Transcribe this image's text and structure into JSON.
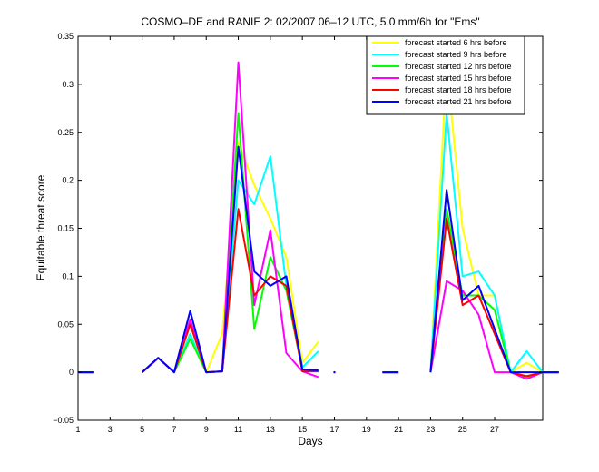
{
  "chart_data": {
    "type": "line",
    "title": "COSMO–DE and RANIE 2: 02/2007 06–12 UTC, 5.0 mm/6h for \"Ems\"",
    "xlabel": "Days",
    "ylabel": "Equitable threat score",
    "xlim": [
      1,
      30
    ],
    "ylim": [
      -0.05,
      0.35
    ],
    "xticks": [
      1,
      3,
      5,
      7,
      9,
      11,
      13,
      15,
      17,
      19,
      21,
      23,
      25,
      27
    ],
    "yticks": [
      -0.05,
      0,
      0.05,
      0.1,
      0.15,
      0.2,
      0.25,
      0.3,
      0.35
    ],
    "ytick_labels": [
      "−0.05",
      "0",
      "0.05",
      "0.1",
      "0.15",
      "0.2",
      "0.25",
      "0.3",
      "0.35"
    ],
    "grid": false,
    "legend_position": "top-right",
    "series": [
      {
        "name": "forecast started 6 hrs before",
        "color": "#ffff00",
        "values": [
          0,
          0,
          null,
          null,
          0,
          0.015,
          0,
          0.04,
          0,
          0.04,
          0.24,
          0.195,
          0.16,
          0.12,
          0.01,
          0.032,
          null,
          0,
          null,
          0,
          0,
          null,
          0,
          0.32,
          0.15,
          0.08,
          0.08,
          0,
          0.01,
          0,
          0
        ]
      },
      {
        "name": "forecast started 9 hrs before",
        "color": "#00ffff",
        "values": [
          0,
          0,
          null,
          null,
          0,
          0.015,
          0,
          0.04,
          0,
          0.001,
          0.2,
          0.175,
          0.225,
          0.09,
          0.005,
          0.022,
          null,
          0,
          null,
          0,
          0,
          null,
          0,
          0.27,
          0.1,
          0.105,
          0.08,
          0,
          0.022,
          0,
          0
        ]
      },
      {
        "name": "forecast started 12 hrs before",
        "color": "#00ff00",
        "values": [
          0,
          0,
          null,
          null,
          0,
          0.015,
          0,
          0.035,
          0,
          0.001,
          0.27,
          0.045,
          0.12,
          0.085,
          0.002,
          0.001,
          null,
          0,
          null,
          0,
          0,
          null,
          0,
          0.17,
          0.08,
          0.08,
          0.065,
          0,
          -0.005,
          0,
          0
        ]
      },
      {
        "name": "forecast started 15 hrs before",
        "color": "#ff00ff",
        "values": [
          0,
          0,
          null,
          null,
          0,
          0.015,
          0,
          0.055,
          0,
          0.001,
          0.323,
          0.07,
          0.148,
          0.02,
          0.001,
          -0.005,
          null,
          0,
          null,
          0,
          0,
          null,
          0,
          0.095,
          0.085,
          0.06,
          0,
          0,
          -0.007,
          0,
          0
        ]
      },
      {
        "name": "forecast started 18 hrs before",
        "color": "#ff0000",
        "values": [
          0,
          0,
          null,
          null,
          0,
          0.015,
          0,
          0.05,
          0,
          0.001,
          0.17,
          0.08,
          0.1,
          0.09,
          0.001,
          0.001,
          null,
          0,
          null,
          0,
          0,
          null,
          0,
          0.16,
          0.07,
          0.08,
          0.04,
          0,
          -0.004,
          0,
          0
        ]
      },
      {
        "name": "forecast started 21 hrs before",
        "color": "#0000ff",
        "values": [
          0,
          0,
          null,
          null,
          0,
          0.015,
          0,
          0.064,
          0,
          0.001,
          0.235,
          0.105,
          0.09,
          0.1,
          0.003,
          0.002,
          null,
          0,
          null,
          0,
          0,
          null,
          0,
          0.19,
          0.075,
          0.09,
          0.045,
          0,
          0,
          0,
          0
        ]
      }
    ],
    "point_markers": [
      {
        "x": 17,
        "y": 0,
        "color": "#0000ff"
      }
    ]
  }
}
